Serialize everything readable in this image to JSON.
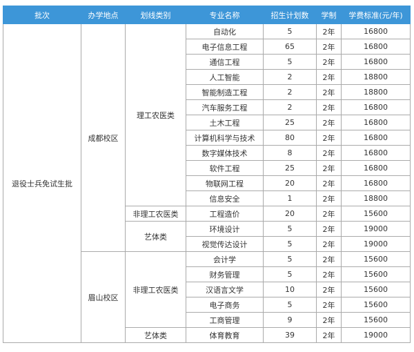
{
  "header": [
    "批次",
    "办学地点",
    "划线类别",
    "专业名称",
    "招生计划数",
    "学制",
    "学费标准(元/年)"
  ],
  "batch": "退役士兵免试生批",
  "campuses": [
    {
      "name": "成都校区",
      "categories": [
        {
          "name": "理工农医类",
          "majors": [
            {
              "name": "自动化",
              "plan": "5",
              "years": "2年",
              "fee": "16800"
            },
            {
              "name": "电子信息工程",
              "plan": "65",
              "years": "2年",
              "fee": "16800"
            },
            {
              "name": "通信工程",
              "plan": "5",
              "years": "2年",
              "fee": "16800"
            },
            {
              "name": "人工智能",
              "plan": "2",
              "years": "2年",
              "fee": "18800"
            },
            {
              "name": "智能制造工程",
              "plan": "2",
              "years": "2年",
              "fee": "18800"
            },
            {
              "name": "汽车服务工程",
              "plan": "2",
              "years": "2年",
              "fee": "16800"
            },
            {
              "name": "土木工程",
              "plan": "25",
              "years": "2年",
              "fee": "16800"
            },
            {
              "name": "计算机科学与技术",
              "plan": "80",
              "years": "2年",
              "fee": "16800"
            },
            {
              "name": "数字媒体技术",
              "plan": "8",
              "years": "2年",
              "fee": "16800"
            },
            {
              "name": "软件工程",
              "plan": "25",
              "years": "2年",
              "fee": "16800"
            },
            {
              "name": "物联网工程",
              "plan": "20",
              "years": "2年",
              "fee": "16800"
            },
            {
              "name": "信息安全",
              "plan": "1",
              "years": "2年",
              "fee": "18800"
            }
          ]
        },
        {
          "name": "非理工农医类",
          "majors": [
            {
              "name": "工程造价",
              "plan": "20",
              "years": "2年",
              "fee": "15600"
            }
          ]
        },
        {
          "name": "艺体类",
          "majors": [
            {
              "name": "环境设计",
              "plan": "5",
              "years": "2年",
              "fee": "19000"
            },
            {
              "name": "视觉传达设计",
              "plan": "5",
              "years": "2年",
              "fee": "19000"
            }
          ]
        }
      ]
    },
    {
      "name": "眉山校区",
      "categories": [
        {
          "name": "非理工农医类",
          "majors": [
            {
              "name": "会计学",
              "plan": "5",
              "years": "2年",
              "fee": "15600"
            },
            {
              "name": "财务管理",
              "plan": "5",
              "years": "2年",
              "fee": "15600"
            },
            {
              "name": "汉语言文学",
              "plan": "10",
              "years": "2年",
              "fee": "15600"
            },
            {
              "name": "电子商务",
              "plan": "5",
              "years": "2年",
              "fee": "15600"
            },
            {
              "name": "工商管理",
              "plan": "9",
              "years": "2年",
              "fee": "15600"
            }
          ]
        },
        {
          "name": "艺体类",
          "majors": [
            {
              "name": "体育教育",
              "plan": "39",
              "years": "2年",
              "fee": "19000"
            }
          ]
        }
      ]
    }
  ]
}
